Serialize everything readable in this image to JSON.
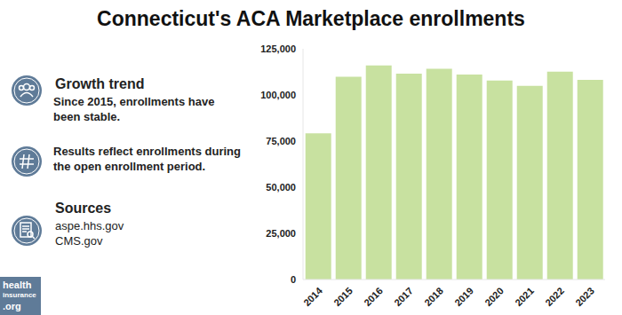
{
  "chart_data": {
    "type": "bar",
    "title": "Connecticut's ACA Marketplace enrollments",
    "categories": [
      "2014",
      "2015",
      "2016",
      "2017",
      "2018",
      "2019",
      "2020",
      "2021",
      "2022",
      "2023"
    ],
    "values": [
      79192,
      109839,
      116019,
      111542,
      114134,
      111066,
      107833,
      104946,
      112633,
      108132
    ],
    "color": "#c8e1a0",
    "ylim": [
      0,
      125000
    ],
    "yticks": [
      0,
      {
        "value": 25000,
        "label": "25,000"
      },
      {
        "value": 50000,
        "label": "50,000"
      },
      {
        "value": 75000,
        "label": "75,000"
      },
      {
        "value": 100000,
        "label": "100,000"
      },
      {
        "value": 125000,
        "label": "125,000"
      }
    ],
    "grid": false
  },
  "sidebar": [
    {
      "heading": "Growth trend",
      "text": "Since 2015, enrollments have been stable."
    },
    {
      "text": "Results reflect enrollments during the open enrollment period."
    },
    {
      "heading": "Sources",
      "lines": [
        "aspe.hhs.gov",
        "CMS.gov"
      ]
    }
  ],
  "logo": [
    "health",
    "insurance",
    ".org"
  ]
}
